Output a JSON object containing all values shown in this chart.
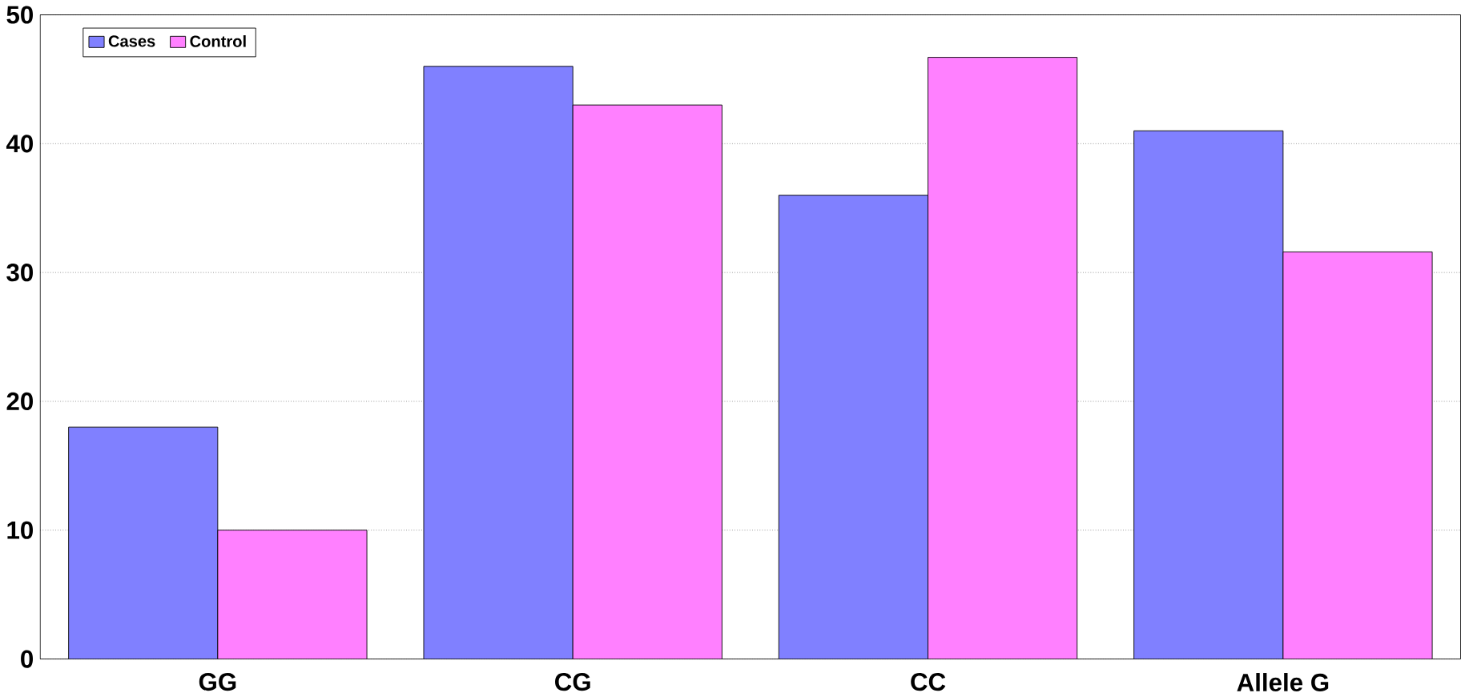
{
  "chart_data": {
    "type": "bar",
    "categories": [
      "GG",
      "CG",
      "CC",
      "Allele G"
    ],
    "series": [
      {
        "name": "Cases",
        "color": "#8080ff",
        "values": [
          18,
          46,
          36,
          41
        ]
      },
      {
        "name": "Control",
        "color": "#ff80ff",
        "values": [
          10,
          43,
          46.7,
          31.6
        ]
      }
    ],
    "ylim": [
      0,
      50
    ],
    "yticks": [
      0,
      10,
      20,
      30,
      40,
      50
    ],
    "grid": "y",
    "legend": "top left"
  }
}
